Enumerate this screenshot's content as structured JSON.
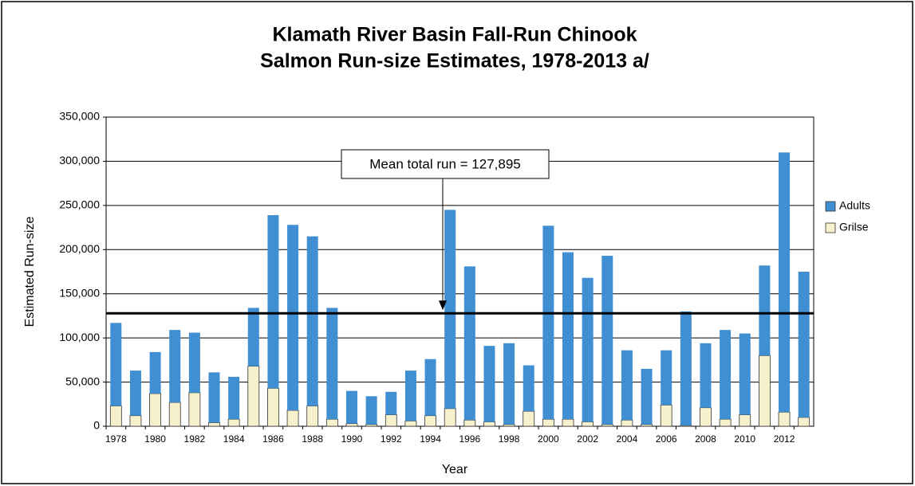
{
  "chart_data": {
    "type": "bar",
    "stacked": true,
    "title_lines": [
      "Klamath River Basin Fall-Run Chinook",
      "Salmon Run-size Estimates, 1978-2013 a/"
    ],
    "x_label": "Year",
    "y_label": "Estimated Run-size",
    "annotation": "Mean total run = 127,895",
    "mean_value": 127895,
    "categories": [
      "1978",
      null,
      "1980",
      null,
      "1982",
      null,
      "1984",
      null,
      "1986",
      null,
      "1988",
      null,
      "1990",
      null,
      "1992",
      null,
      "1994",
      null,
      "1996",
      null,
      "1998",
      null,
      "2000",
      null,
      "2002",
      null,
      "2004",
      null,
      "2006",
      null,
      "2008",
      null,
      "2010",
      null,
      "2012",
      null
    ],
    "series": [
      {
        "name": "Adults",
        "color": "#3f8fd2",
        "values": [
          94000,
          51000,
          47000,
          82000,
          68000,
          57000,
          48000,
          66000,
          196000,
          210000,
          192000,
          126000,
          37000,
          32000,
          26000,
          57000,
          64000,
          225000,
          174000,
          86000,
          92000,
          52000,
          219000,
          189000,
          163000,
          191000,
          79000,
          63000,
          62000,
          129000,
          73000,
          101000,
          92000,
          102000,
          294000,
          165000
        ]
      },
      {
        "name": "Grilse",
        "color": "#f6f1cc",
        "values": [
          23000,
          12000,
          37000,
          27000,
          38000,
          4000,
          8000,
          68000,
          43000,
          18000,
          23000,
          8000,
          3000,
          2000,
          13000,
          6000,
          12000,
          20000,
          7000,
          5000,
          2000,
          17000,
          8000,
          8000,
          5000,
          2000,
          7000,
          2000,
          24000,
          1000,
          21000,
          8000,
          13000,
          80000,
          16000,
          10000
        ]
      }
    ],
    "ylim": [
      0,
      350000
    ],
    "yticks": [
      0,
      {
        "value": 50000,
        "label": "50,000"
      },
      {
        "value": 100000,
        "label": "100,000"
      },
      {
        "value": 150000,
        "label": "150,000"
      },
      {
        "value": 200000,
        "label": "200,000"
      },
      {
        "value": 250000,
        "label": "250,000"
      },
      {
        "value": 300000,
        "label": "300,000"
      },
      {
        "value": 350000,
        "label": "350,000"
      }
    ],
    "grid": true,
    "legend": "right"
  }
}
